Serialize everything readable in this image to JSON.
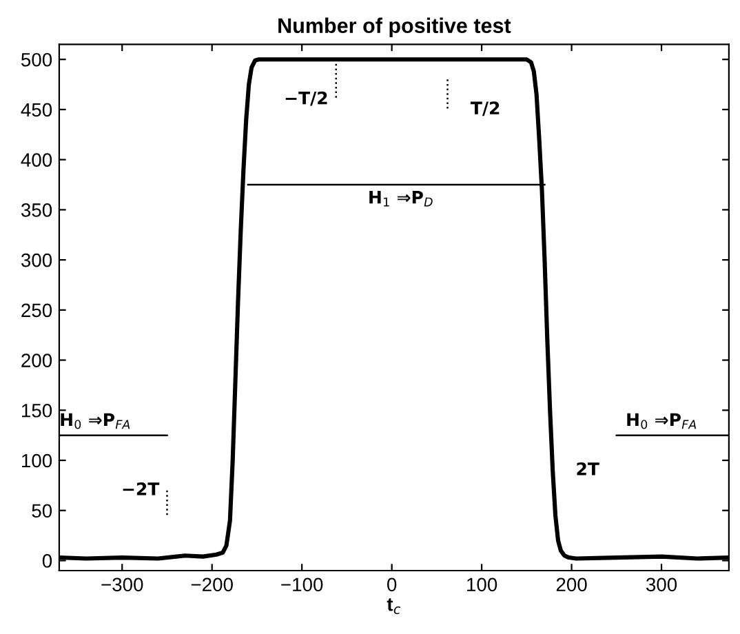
{
  "chart_data": {
    "type": "line",
    "title": "Number of positive test",
    "xlabel": "t$_{c}$",
    "xlim": [
      -370,
      375
    ],
    "ylim": [
      -10,
      515
    ],
    "xticks": [
      {
        "value": -300,
        "label": "−300"
      },
      {
        "value": -200,
        "label": "−200"
      },
      {
        "value": -100,
        "label": "−100"
      },
      0,
      100,
      200,
      300
    ],
    "yticks": [
      0,
      50,
      100,
      150,
      200,
      250,
      300,
      350,
      400,
      450,
      500
    ],
    "grid": false,
    "legend": false,
    "marker": "none",
    "series": [
      {
        "color": "#000000",
        "line_style": "solid",
        "x": [
          -370,
          -340,
          -300,
          -260,
          -230,
          -210,
          -195,
          -188,
          -184,
          -180,
          -177,
          -174,
          -171,
          -168,
          -165,
          -162,
          -159,
          -156,
          -152,
          -148,
          0,
          150,
          155,
          158,
          161,
          164,
          167,
          170,
          173,
          176,
          179,
          182,
          185,
          188,
          192,
          197,
          205,
          250,
          300,
          340,
          375
        ],
        "values": [
          3,
          2,
          3,
          2,
          5,
          4,
          6,
          8,
          15,
          40,
          100,
          180,
          260,
          330,
          390,
          440,
          475,
          492,
          499,
          500,
          500,
          500,
          497,
          488,
          465,
          420,
          370,
          300,
          220,
          150,
          90,
          45,
          20,
          10,
          5,
          3,
          2,
          3,
          4,
          2,
          3
        ]
      },
      {
        "color": "#000000",
        "line_style": "solid",
        "x": [
          -160,
          170
        ],
        "values": [
          375,
          375
        ]
      },
      {
        "color": "#000000",
        "line_style": "solid",
        "x": [
          -370,
          -250
        ],
        "values": [
          125,
          125
        ]
      },
      {
        "color": "#000000",
        "line_style": "solid",
        "x": [
          250,
          375
        ],
        "values": [
          125,
          125
        ]
      },
      {
        "color": "#000000",
        "line_style": "dotted",
        "x": [
          -62,
          -62
        ],
        "values": [
          500,
          460
        ]
      },
      {
        "color": "#000000",
        "line_style": "dotted",
        "x": [
          62,
          62
        ],
        "values": [
          480,
          450
        ]
      },
      {
        "color": "#000000",
        "line_style": "dotted",
        "x": [
          -250,
          -250
        ],
        "values": [
          70,
          45
        ]
      }
    ],
    "annotations": [
      {
        "text": "H$_{1}$ ⇒P$_{D}$",
        "x": 10,
        "y": 375
      },
      {
        "text": "H$_{0}$ ⇒P$_{FA}$",
        "x": -330,
        "y": 125
      },
      {
        "text": "H$_{0}$ ⇒P$_{FA}$",
        "x": 300,
        "y": 125
      },
      {
        "text": "−T/2",
        "x": -62,
        "y": 460
      },
      {
        "text": "T/2",
        "x": 62,
        "y": 450
      },
      {
        "text": "−2T",
        "x": -250,
        "y": 70
      },
      {
        "text": "2T",
        "x": 179,
        "y": 90
      }
    ]
  }
}
